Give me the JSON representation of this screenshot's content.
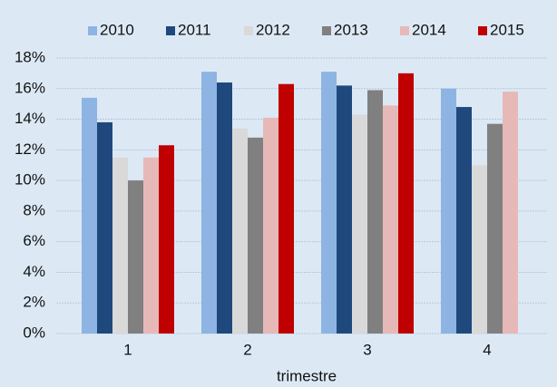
{
  "chart_data": {
    "type": "bar",
    "x_label": "trimestre",
    "categories": [
      "1",
      "2",
      "3",
      "4"
    ],
    "series": [
      {
        "name": "2010",
        "color": "#8db4e2",
        "values": [
          15.4,
          17.1,
          17.1,
          16.0
        ]
      },
      {
        "name": "2011",
        "color": "#1f497d",
        "values": [
          13.8,
          16.4,
          16.2,
          14.8
        ]
      },
      {
        "name": "2012",
        "color": "#d9d9d9",
        "values": [
          11.5,
          13.4,
          14.3,
          11.0
        ]
      },
      {
        "name": "2013",
        "color": "#808080",
        "values": [
          10.0,
          12.8,
          15.9,
          13.7
        ]
      },
      {
        "name": "2014",
        "color": "#e6b9b8",
        "values": [
          11.5,
          14.1,
          14.9,
          15.8
        ]
      },
      {
        "name": "2015",
        "color": "#c00000",
        "values": [
          12.3,
          16.3,
          17.0,
          null
        ]
      }
    ],
    "ylim": [
      0,
      18
    ],
    "yticks": [
      {
        "value": 0,
        "label": "0%"
      },
      {
        "value": 2,
        "label": "2%"
      },
      {
        "value": 4,
        "label": "4%"
      },
      {
        "value": 6,
        "label": "6%"
      },
      {
        "value": 8,
        "label": "8%"
      },
      {
        "value": 10,
        "label": "10%"
      },
      {
        "value": 12,
        "label": "12%"
      },
      {
        "value": 14,
        "label": "14%"
      },
      {
        "value": 16,
        "label": "16%"
      },
      {
        "value": 18,
        "label": "18%"
      }
    ],
    "grid": true,
    "legend": "top"
  }
}
